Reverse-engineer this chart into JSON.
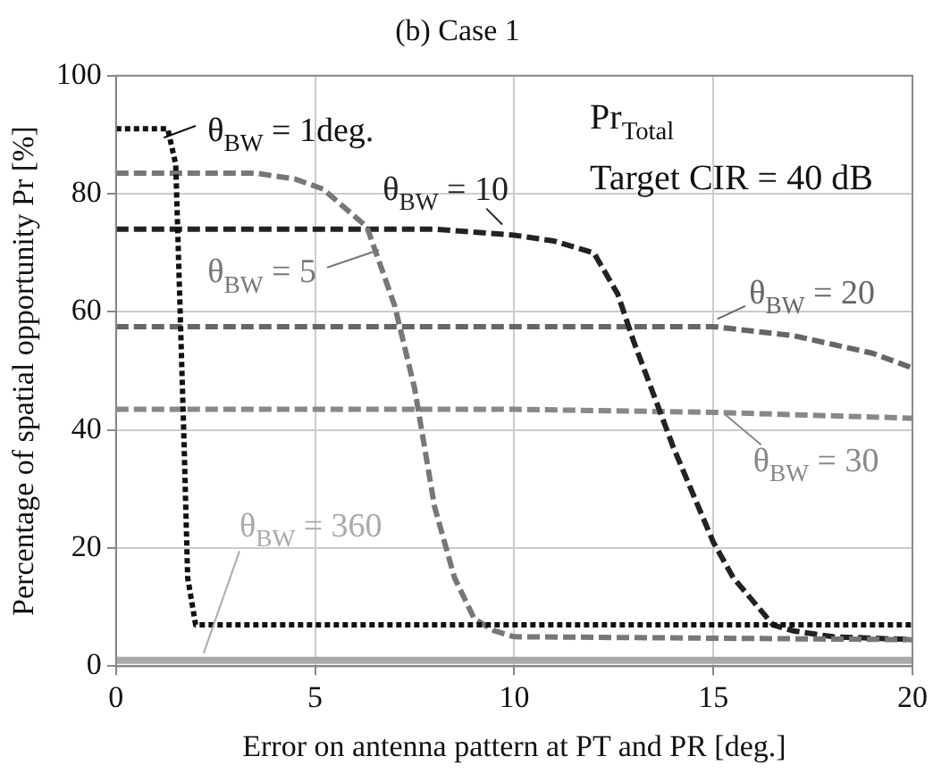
{
  "chart_data": {
    "type": "line",
    "title": "(b) Case 1",
    "xlabel": "Error on antenna pattern at PT and PR [deg.]",
    "ylabel": "Percentage of spatial opportunity Pr [%]",
    "xlim": [
      0,
      20
    ],
    "xticks": [
      0,
      5,
      10,
      15,
      20
    ],
    "ylim": [
      0,
      100
    ],
    "yticks": [
      0,
      20,
      40,
      60,
      80,
      100
    ],
    "grid": true,
    "legend": "top",
    "marker": "none",
    "annotations": [
      "Pr$_{Total}$",
      "Target CIR = 40 dB"
    ],
    "series": [
      {
        "name": "θ$_{BW}$ = 1deg.",
        "color": "#111111",
        "line_style": "dotted",
        "x": [
          0,
          1.3,
          1.5,
          1.7,
          1.8,
          2.0,
          20
        ],
        "values": [
          91,
          91,
          85,
          40,
          15,
          7,
          7
        ]
      },
      {
        "name": "θ$_{BW}$ = 5",
        "color": "#777777",
        "line_style": "dashed",
        "x": [
          0,
          3.5,
          4.5,
          5.2,
          6.3,
          7,
          7.5,
          8,
          8.5,
          9,
          9.5,
          10,
          20
        ],
        "values": [
          83.5,
          83.5,
          82.5,
          80.8,
          74.4,
          61,
          47,
          27,
          15,
          8,
          6,
          5,
          4.5
        ]
      },
      {
        "name": "θ$_{BW}$ = 10",
        "color": "#222222",
        "line_style": "dashed",
        "x": [
          0,
          8,
          10,
          11,
          12,
          12.6,
          13,
          13.5,
          14,
          14.5,
          15,
          15.5,
          16,
          16.5,
          17,
          18,
          20
        ],
        "values": [
          74,
          74,
          73,
          72,
          70,
          63,
          55,
          46,
          37,
          29,
          21,
          15,
          11,
          7,
          6,
          5,
          4.5
        ]
      },
      {
        "name": "θ$_{BW}$ = 20",
        "color": "#666666",
        "line_style": "dashed",
        "x": [
          0,
          15,
          17,
          19,
          20
        ],
        "values": [
          57.5,
          57.5,
          56,
          53,
          50.5
        ]
      },
      {
        "name": "θ$_{BW}$ = 30",
        "color": "#888888",
        "line_style": "dashed",
        "x": [
          0,
          10,
          15,
          20
        ],
        "values": [
          43.5,
          43.5,
          43,
          42
        ]
      },
      {
        "name": "θ$_{BW}$ = 360",
        "color": "#aaaaaa",
        "line_style": "solid",
        "x": [
          0,
          20
        ],
        "values": [
          1,
          1
        ]
      }
    ]
  }
}
